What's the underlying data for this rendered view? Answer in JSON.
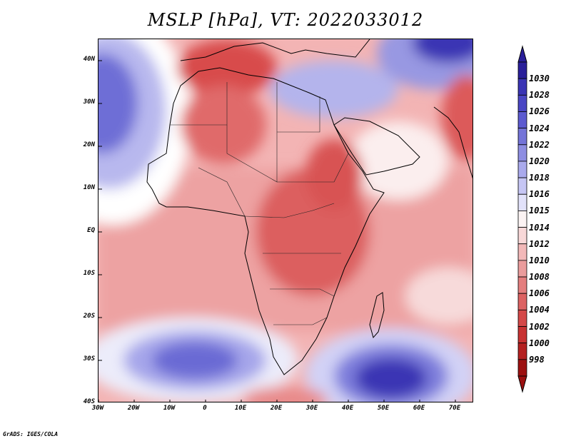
{
  "title": "MSLP [hPa], VT: 2022033012",
  "credit": "GrADS: IGES/COLA",
  "map": {
    "lat_ticks": [
      "40N",
      "30N",
      "20N",
      "10N",
      "EQ",
      "10S",
      "20S",
      "30S",
      "40S"
    ],
    "lon_ticks": [
      "30W",
      "20W",
      "10W",
      "0",
      "10E",
      "20E",
      "30E",
      "40E",
      "50E",
      "60E",
      "70E"
    ],
    "lon_range": [
      -30,
      75
    ],
    "lat_range": [
      -40,
      45
    ]
  },
  "colorbar": {
    "labels": [
      "1030",
      "1028",
      "1026",
      "1024",
      "1022",
      "1020",
      "1018",
      "1016",
      "1015",
      "1014",
      "1012",
      "1010",
      "1008",
      "1006",
      "1004",
      "1002",
      "1000",
      "998"
    ],
    "colors": [
      "#2a1f9a",
      "#3a34b4",
      "#4a46c4",
      "#5c5ad0",
      "#7474d8",
      "#8e8ee2",
      "#aaaaec",
      "#c6c6f4",
      "#e2e2fa",
      "#fbf3f3",
      "#f8d8d8",
      "#f2b8b8",
      "#ea9c9c",
      "#e47e7e",
      "#dc6262",
      "#d44848",
      "#c83232",
      "#b42020",
      "#9c1010"
    ]
  }
}
